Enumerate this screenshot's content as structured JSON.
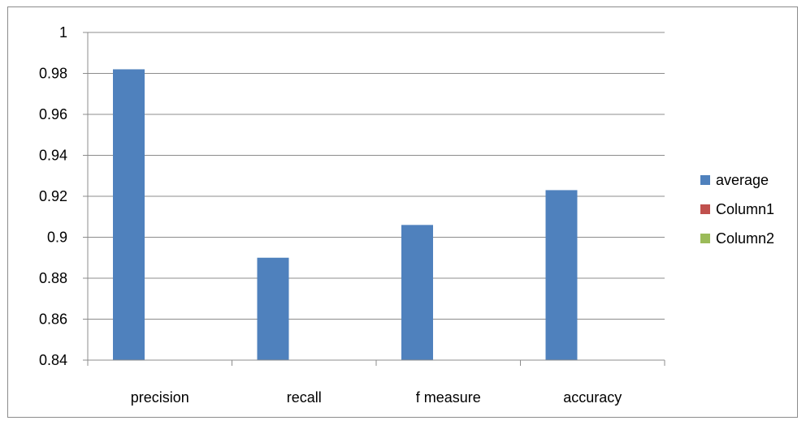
{
  "chart_data": {
    "type": "bar",
    "categories": [
      "precision",
      "recall",
      "f measure",
      "accuracy"
    ],
    "series": [
      {
        "name": "average",
        "values": [
          0.982,
          0.89,
          0.906,
          0.923
        ],
        "color": "#4f81bd"
      },
      {
        "name": "Column1",
        "values": [
          null,
          null,
          null,
          null
        ],
        "color": "#c0504d"
      },
      {
        "name": "Column2",
        "values": [
          null,
          null,
          null,
          null
        ],
        "color": "#9bbb59"
      }
    ],
    "y_ticks": [
      "0.84",
      "0.86",
      "0.88",
      "0.9",
      "0.92",
      "0.94",
      "0.96",
      "0.98",
      "1"
    ],
    "ylim": [
      0.84,
      1.0
    ],
    "grid": true,
    "legend_position": "right",
    "title": "",
    "xlabel": "",
    "ylabel": ""
  }
}
